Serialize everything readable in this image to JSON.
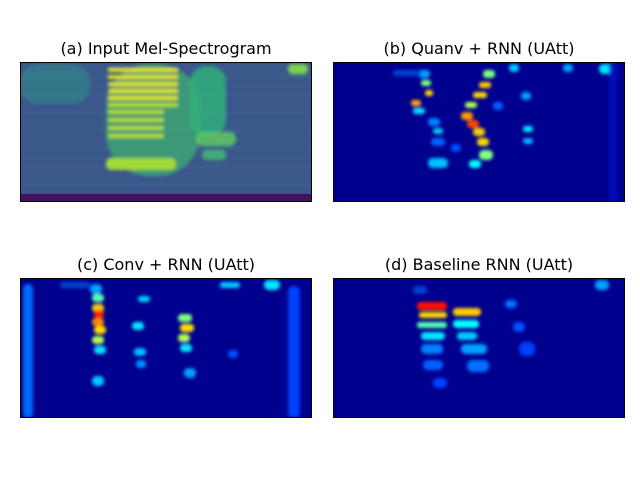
{
  "figure": {
    "panels": [
      {
        "title": "(a) Input Mel-Spectrogram",
        "colormap": "viridis"
      },
      {
        "title": "(b) Quanv + RNN (UAtt)",
        "colormap": "jet"
      },
      {
        "title": "(c) Conv + RNN (UAtt)",
        "colormap": "jet"
      },
      {
        "title": "(d) Baseline RNN (UAtt)",
        "colormap": "jet"
      }
    ]
  },
  "chart_data": [
    {
      "type": "heatmap",
      "title": "(a) Input Mel-Spectrogram",
      "xlabel": "",
      "ylabel": "",
      "colormap": "viridis",
      "axes_visible": false,
      "grid": false
    },
    {
      "type": "heatmap",
      "title": "(b) Quanv + RNN (UAtt)",
      "xlabel": "",
      "ylabel": "",
      "colormap": "jet",
      "axes_visible": false,
      "grid": false
    },
    {
      "type": "heatmap",
      "title": "(c) Conv + RNN (UAtt)",
      "xlabel": "",
      "ylabel": "",
      "colormap": "jet",
      "axes_visible": false,
      "grid": false
    },
    {
      "type": "heatmap",
      "title": "(d) Baseline RNN (UAtt)",
      "xlabel": "",
      "ylabel": "",
      "colormap": "jet",
      "axes_visible": false,
      "grid": false
    }
  ]
}
